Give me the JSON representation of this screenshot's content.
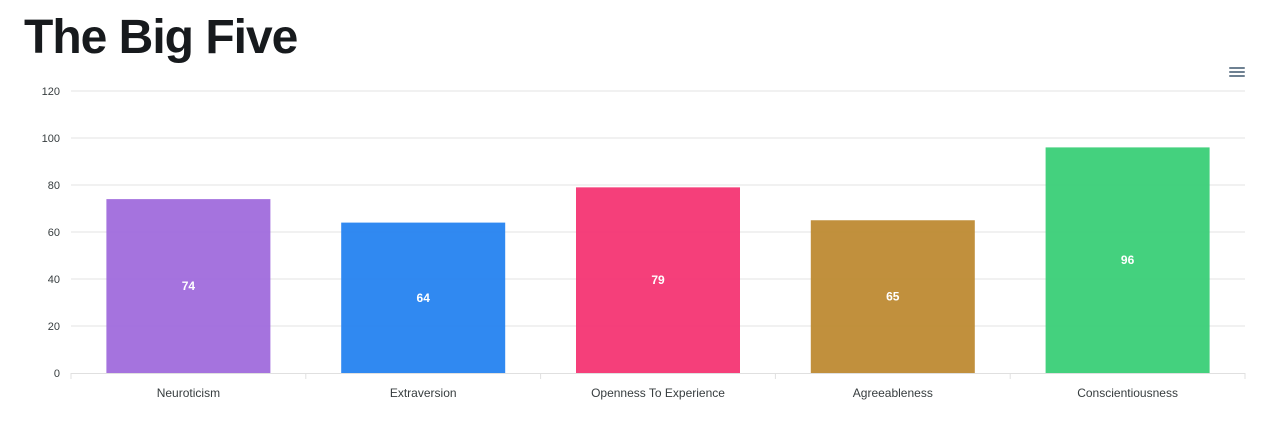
{
  "header": {
    "title": "The Big Five"
  },
  "toolbar": {
    "menu_icon": "hamburger-menu-icon"
  },
  "chart_data": {
    "type": "bar",
    "title": "",
    "xlabel": "",
    "ylabel": "",
    "categories": [
      "Neuroticism",
      "Extraversion",
      "Openness To Experience",
      "Agreeableness",
      "Conscientiousness"
    ],
    "values": [
      74,
      64,
      79,
      65,
      96
    ],
    "colors": [
      "#a06cdc",
      "#2583f0",
      "#f43573",
      "#be8a33",
      "#3acf77"
    ],
    "ylim": [
      0,
      120
    ],
    "yticks": [
      0,
      20,
      40,
      60,
      80,
      100,
      120
    ],
    "grid": true,
    "legend": "none",
    "data_labels": true
  }
}
